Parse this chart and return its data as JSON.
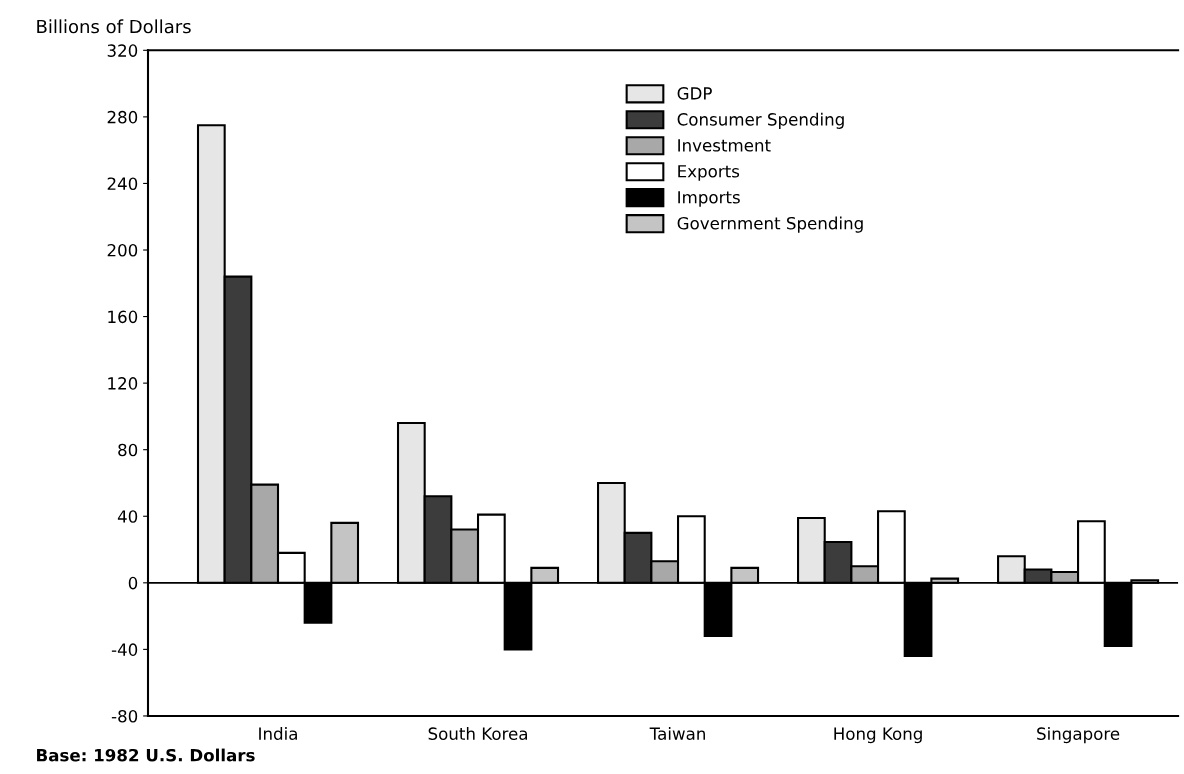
{
  "chart_data": {
    "type": "bar",
    "ylabel": "Billions of Dollars",
    "categories": [
      "India",
      "South Korea",
      "Taiwan",
      "Hong Kong",
      "Singapore"
    ],
    "series": [
      {
        "name": "GDP",
        "color": "#e6e6e6",
        "values": [
          275,
          96,
          60,
          39,
          16
        ]
      },
      {
        "name": "Consumer Spending",
        "color": "#3c3c3c",
        "values": [
          184,
          52,
          30,
          24.5,
          8
        ]
      },
      {
        "name": "Investment",
        "color": "#a8a8a8",
        "values": [
          59,
          32,
          13,
          10,
          6.5
        ]
      },
      {
        "name": "Exports",
        "color": "#ffffff",
        "values": [
          18,
          41,
          40,
          43,
          37
        ]
      },
      {
        "name": "Imports",
        "color": "#000000",
        "values": [
          -24,
          -40,
          -32,
          -44,
          -38
        ]
      },
      {
        "name": "Government Spending",
        "color": "#c4c4c4",
        "values": [
          36,
          9,
          9,
          2.5,
          1.5
        ]
      }
    ],
    "ylim": [
      -80,
      320
    ],
    "yticks": [
      -80,
      -40,
      0,
      40,
      80,
      120,
      160,
      200,
      240,
      280,
      320
    ],
    "ref_lines": [
      {
        "axis": "y",
        "value": 0,
        "color": "#000000"
      }
    ],
    "legend": "top",
    "grid": false,
    "annotations": [
      "Base: 1982 U.S. Dollars"
    ]
  }
}
